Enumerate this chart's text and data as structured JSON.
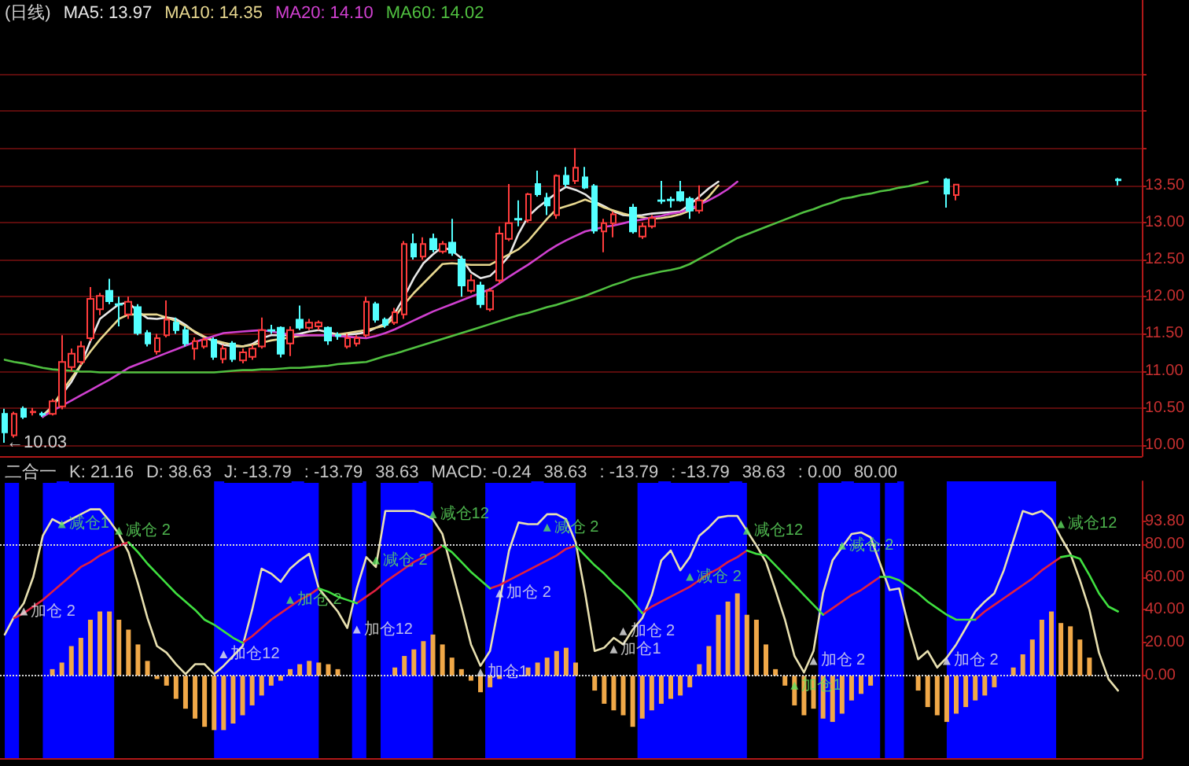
{
  "chart_data": [
    {
      "type": "candlestick",
      "title": "(日线)",
      "grid": "y",
      "tick_labels": "y",
      "ylim": [
        9.85,
        16.0
      ],
      "categories": [
        null,
        null,
        null,
        null,
        null,
        null,
        null,
        null,
        null,
        null,
        null,
        null,
        null,
        null,
        null,
        null,
        null,
        null,
        null,
        null,
        null,
        null,
        null,
        null,
        null,
        null,
        null,
        null,
        null,
        null,
        null,
        null,
        null,
        null,
        null,
        null,
        null,
        null,
        null,
        null,
        null,
        null,
        null,
        null,
        null,
        null,
        null,
        null,
        null,
        null,
        null,
        null,
        null,
        null,
        null,
        null,
        null,
        null,
        null,
        null,
        null,
        null,
        null,
        null,
        null,
        null,
        null,
        null,
        null,
        null,
        null,
        null,
        null,
        null,
        null,
        null,
        null,
        null,
        null,
        null,
        null,
        null,
        null,
        null,
        null,
        null,
        null,
        null,
        null,
        null,
        null,
        null,
        null,
        null,
        null,
        null,
        null,
        null,
        null,
        null,
        null,
        null,
        null,
        null,
        null,
        null,
        null,
        null,
        null,
        null,
        null,
        null,
        null,
        null,
        null,
        null,
        null,
        null,
        null,
        null
      ],
      "yticks": [
        {
          "value": 10,
          "label": "10.00"
        },
        {
          "value": 10.5,
          "label": "10.50"
        },
        {
          "value": 11,
          "label": "11.00"
        },
        {
          "value": 11.5,
          "label": "11.50"
        },
        {
          "value": 12,
          "label": "12.00"
        },
        {
          "value": 12.5,
          "label": "12.50"
        },
        {
          "value": 13,
          "label": "13.00"
        },
        {
          "value": 13.5,
          "label": "13.50"
        },
        {
          "value": 14,
          "label": null
        },
        {
          "value": 14.5,
          "label": null
        },
        {
          "value": 15,
          "label": null
        }
      ],
      "annotations": [
        "←10.03"
      ],
      "series": [
        {
          "ohlc": [
            [
              10.42,
              10.49,
              10.03,
              10.17
            ],
            [
              10.13,
              10.45,
              10.1,
              10.42
            ],
            [
              10.49,
              10.52,
              10.35,
              10.38
            ],
            [
              10.44,
              10.5,
              10.4,
              10.45
            ],
            [
              10.42,
              10.45,
              10.38,
              10.41
            ],
            [
              10.42,
              10.62,
              10.4,
              10.59
            ],
            [
              10.52,
              11.48,
              10.48,
              11.12
            ],
            [
              11.05,
              11.3,
              11.0,
              11.23
            ],
            [
              11.12,
              11.4,
              11.08,
              11.33
            ],
            [
              11.44,
              12.13,
              11.4,
              11.97
            ],
            [
              11.83,
              12.05,
              11.75,
              12.01
            ],
            [
              12.08,
              12.24,
              11.9,
              11.94
            ],
            [
              11.9,
              12.0,
              11.6,
              11.89
            ],
            [
              11.76,
              12.0,
              11.7,
              11.93
            ],
            [
              11.86,
              11.9,
              11.48,
              11.51
            ],
            [
              11.51,
              11.55,
              11.33,
              11.37
            ],
            [
              11.26,
              11.5,
              11.22,
              11.44
            ],
            [
              11.48,
              11.95,
              11.45,
              11.69
            ],
            [
              11.65,
              11.72,
              11.5,
              11.55
            ],
            [
              11.55,
              11.6,
              11.33,
              11.37
            ],
            [
              11.3,
              11.45,
              11.15,
              11.4
            ],
            [
              11.33,
              11.45,
              11.3,
              11.42
            ],
            [
              11.42,
              11.45,
              11.15,
              11.19
            ],
            [
              11.16,
              11.35,
              11.1,
              11.3
            ],
            [
              11.37,
              11.4,
              11.12,
              11.16
            ],
            [
              11.14,
              11.3,
              11.1,
              11.25
            ],
            [
              11.19,
              11.35,
              11.15,
              11.3
            ],
            [
              11.33,
              11.72,
              11.3,
              11.55
            ],
            [
              11.55,
              11.62,
              11.5,
              11.54
            ],
            [
              11.58,
              11.6,
              11.18,
              11.23
            ],
            [
              11.37,
              11.6,
              11.2,
              11.55
            ],
            [
              11.69,
              11.88,
              11.55,
              11.58
            ],
            [
              11.58,
              11.7,
              11.55,
              11.65
            ],
            [
              11.6,
              11.68,
              11.55,
              11.65
            ],
            [
              11.58,
              11.6,
              11.35,
              11.41
            ],
            [
              11.48,
              11.52,
              11.42,
              11.47
            ],
            [
              11.33,
              11.5,
              11.3,
              11.44
            ],
            [
              11.37,
              11.48,
              11.33,
              11.44
            ],
            [
              11.48,
              12.0,
              11.45,
              11.93
            ],
            [
              11.9,
              11.93,
              11.65,
              11.69
            ],
            [
              11.69,
              11.72,
              11.58,
              11.62
            ],
            [
              11.65,
              11.85,
              11.62,
              11.79
            ],
            [
              11.76,
              12.75,
              11.7,
              12.71
            ],
            [
              12.71,
              12.85,
              12.5,
              12.54
            ],
            [
              12.54,
              12.8,
              12.5,
              12.71
            ],
            [
              12.78,
              12.85,
              12.6,
              12.64
            ],
            [
              12.61,
              12.75,
              12.58,
              12.71
            ],
            [
              12.73,
              13.05,
              12.55,
              12.59
            ],
            [
              12.5,
              12.55,
              12.0,
              12.15
            ],
            [
              12.08,
              12.3,
              12.05,
              12.22
            ],
            [
              12.15,
              12.2,
              11.85,
              11.9
            ],
            [
              11.83,
              12.12,
              11.8,
              12.08
            ],
            [
              12.22,
              12.95,
              12.18,
              12.85
            ],
            [
              12.78,
              13.52,
              12.75,
              12.99
            ],
            [
              13.05,
              13.3,
              12.95,
              13.04
            ],
            [
              13.03,
              13.4,
              13.0,
              13.38
            ],
            [
              13.52,
              13.7,
              13.35,
              13.38
            ],
            [
              13.33,
              13.4,
              13.1,
              13.23
            ],
            [
              13.1,
              13.65,
              13.05,
              13.63
            ],
            [
              13.63,
              13.75,
              13.48,
              13.52
            ],
            [
              13.56,
              14.0,
              13.52,
              13.74
            ],
            [
              13.61,
              13.75,
              13.45,
              13.47
            ],
            [
              13.49,
              13.52,
              12.85,
              12.89
            ],
            [
              12.88,
              13.05,
              12.6,
              12.99
            ],
            [
              12.99,
              13.15,
              12.8,
              13.11
            ],
            null,
            [
              13.2,
              13.25,
              12.85,
              12.88
            ],
            [
              12.81,
              13.0,
              12.78,
              12.95
            ],
            [
              12.95,
              13.1,
              12.92,
              13.06
            ],
            [
              13.3,
              13.56,
              13.25,
              13.29
            ],
            [
              13.31,
              13.35,
              13.2,
              13.3
            ],
            [
              13.41,
              13.56,
              13.28,
              13.3
            ],
            [
              13.32,
              13.35,
              13.05,
              13.16
            ],
            [
              13.16,
              13.5,
              13.12,
              13.3
            ],
            null,
            null,
            null,
            null,
            null,
            null,
            null,
            null,
            null,
            null,
            null,
            null,
            null,
            null,
            null,
            null,
            null,
            null,
            null,
            null,
            null,
            null,
            null,
            null,
            null,
            [
              13.58,
              13.6,
              13.2,
              13.39
            ],
            [
              13.37,
              13.52,
              13.3,
              13.51
            ],
            null,
            null,
            null,
            null,
            null,
            null,
            null,
            null,
            null,
            null,
            null,
            null,
            null,
            null,
            null,
            null,
            [
              13.58,
              13.6,
              13.5,
              13.57
            ],
            null,
            null
          ]
        },
        {
          "type": "line",
          "name": "MA5: 13.97",
          "color": "#e8e8e8",
          "values": [
            null,
            null,
            null,
            null,
            10.4,
            10.52,
            10.68,
            10.85,
            11.08,
            11.4,
            11.7,
            11.8,
            11.9,
            11.92,
            11.8,
            11.71,
            11.7,
            11.72,
            11.7,
            11.62,
            11.52,
            11.45,
            11.4,
            11.35,
            11.33,
            11.33,
            11.36,
            11.44,
            11.48,
            11.48,
            11.48,
            11.5,
            11.53,
            11.55,
            11.52,
            11.49,
            11.49,
            11.5,
            11.52,
            11.58,
            11.64,
            11.78,
            12.0,
            12.25,
            12.45,
            12.57,
            12.67,
            12.62,
            12.52,
            12.33,
            12.25,
            12.28,
            12.4,
            12.55,
            12.85,
            13.08,
            13.2,
            13.3,
            13.4,
            13.48,
            13.44,
            13.38,
            13.28,
            13.22,
            13.15,
            13.1,
            13.09,
            13.1,
            13.12,
            13.13,
            13.14,
            13.15,
            13.24,
            13.35,
            13.46,
            13.55,
            null,
            null,
            null,
            null,
            null,
            null,
            null,
            null,
            null,
            null,
            null,
            null,
            null,
            null,
            null,
            null,
            null,
            null,
            null,
            null,
            null,
            null,
            null,
            null,
            null,
            null,
            null,
            null,
            null,
            null,
            null,
            null,
            null,
            null,
            null,
            null,
            null,
            null,
            null,
            null,
            null,
            null,
            null,
            null
          ]
        },
        {
          "type": "line",
          "name": "MA10: 14.35",
          "color": "#e8d890",
          "values": [
            null,
            null,
            null,
            null,
            10.38,
            10.52,
            10.72,
            10.9,
            11.08,
            11.26,
            11.42,
            11.56,
            11.7,
            11.76,
            11.76,
            11.76,
            11.76,
            11.72,
            11.67,
            11.6,
            11.53,
            11.46,
            11.41,
            11.38,
            11.35,
            11.33,
            11.35,
            11.38,
            11.41,
            11.43,
            11.45,
            11.47,
            11.48,
            11.48,
            11.48,
            11.49,
            11.51,
            11.53,
            11.55,
            11.58,
            11.61,
            11.73,
            11.9,
            12.05,
            12.18,
            12.31,
            12.44,
            12.45,
            12.44,
            12.43,
            12.43,
            12.43,
            12.5,
            12.57,
            12.64,
            12.75,
            12.9,
            13.05,
            13.18,
            13.22,
            13.26,
            13.31,
            13.26,
            13.2,
            13.16,
            13.12,
            13.09,
            13.07,
            13.05,
            13.06,
            13.08,
            13.11,
            13.16,
            13.24,
            13.35,
            13.5,
            null,
            null,
            null,
            null,
            null,
            null,
            null,
            null,
            null,
            null,
            null,
            null,
            null,
            null,
            null,
            null,
            null,
            null,
            null,
            null,
            null,
            null,
            null,
            null,
            null,
            null,
            null,
            null,
            null,
            null,
            null,
            null,
            null,
            null,
            null,
            null,
            null,
            null,
            null,
            null,
            null,
            null,
            null,
            null
          ]
        },
        {
          "type": "line",
          "name": "MA20: 14.10",
          "color": "#d040d0",
          "values": [
            null,
            null,
            null,
            null,
            10.38,
            10.46,
            10.53,
            10.6,
            10.67,
            10.74,
            10.81,
            10.88,
            10.96,
            11.04,
            11.09,
            11.14,
            11.19,
            11.24,
            11.29,
            11.34,
            11.39,
            11.43,
            11.47,
            11.51,
            11.52,
            11.53,
            11.54,
            11.55,
            11.53,
            11.51,
            11.49,
            11.48,
            11.48,
            11.48,
            11.48,
            11.47,
            11.46,
            11.45,
            11.44,
            11.47,
            11.51,
            11.56,
            11.62,
            11.68,
            11.74,
            11.8,
            11.85,
            11.9,
            11.95,
            12.0,
            12.05,
            12.1,
            12.18,
            12.27,
            12.35,
            12.43,
            12.52,
            12.61,
            12.69,
            12.76,
            12.82,
            12.88,
            12.91,
            12.94,
            12.96,
            12.99,
            13.02,
            13.04,
            13.07,
            13.09,
            13.12,
            13.14,
            13.18,
            13.24,
            13.3,
            13.37,
            13.45,
            13.55,
            null,
            null,
            null,
            null,
            null,
            null,
            null,
            null,
            null,
            null,
            null,
            null,
            null,
            null,
            null,
            null,
            null,
            null,
            null,
            null,
            null,
            null,
            null,
            null,
            null,
            null,
            null,
            null,
            null,
            null,
            null,
            null,
            null,
            null,
            null,
            null,
            null,
            null,
            null,
            null,
            null,
            null
          ]
        },
        {
          "type": "line",
          "name": "MA60: 14.02",
          "color": "#50c040",
          "values": [
            11.15,
            11.12,
            11.1,
            11.07,
            11.04,
            11.02,
            11.01,
            11.0,
            10.99,
            10.99,
            10.98,
            10.98,
            10.98,
            10.98,
            10.98,
            10.98,
            10.98,
            10.98,
            10.98,
            10.98,
            10.98,
            10.98,
            10.98,
            10.99,
            11.0,
            11.01,
            11.01,
            11.02,
            11.02,
            11.03,
            11.04,
            11.04,
            11.05,
            11.06,
            11.07,
            11.09,
            11.1,
            11.11,
            11.12,
            11.16,
            11.2,
            11.23,
            11.27,
            11.31,
            11.35,
            11.39,
            11.43,
            11.47,
            11.51,
            11.55,
            11.59,
            11.63,
            11.67,
            11.71,
            11.75,
            11.78,
            11.82,
            11.86,
            11.89,
            11.93,
            11.97,
            12.01,
            12.06,
            12.11,
            12.16,
            12.2,
            12.25,
            12.28,
            12.31,
            12.34,
            12.36,
            12.39,
            12.44,
            12.51,
            12.58,
            12.65,
            12.72,
            12.79,
            12.84,
            12.89,
            12.94,
            12.99,
            13.04,
            13.09,
            13.14,
            13.18,
            13.23,
            13.27,
            13.32,
            13.34,
            13.37,
            13.39,
            13.42,
            13.44,
            13.47,
            13.49,
            13.52,
            13.55,
            null,
            null,
            null,
            null,
            null,
            null,
            null,
            null,
            null,
            null,
            null,
            null,
            null,
            null,
            null,
            null,
            null,
            null,
            null,
            null,
            null,
            null
          ]
        }
      ]
    },
    {
      "type": "line",
      "title": "二合一",
      "grid": false,
      "tick_labels": "y",
      "ylim": [
        -50,
        118
      ],
      "categories": [
        null,
        null,
        null,
        null,
        null,
        null,
        null,
        null,
        null,
        null,
        null,
        null,
        null,
        null,
        null,
        null,
        null,
        null,
        null,
        null,
        null,
        null,
        null,
        null,
        null,
        null,
        null,
        null,
        null,
        null,
        null,
        null,
        null,
        null,
        null,
        null,
        null,
        null,
        null,
        null,
        null,
        null,
        null,
        null,
        null,
        null,
        null,
        null,
        null,
        null,
        null,
        null,
        null,
        null,
        null,
        null,
        null,
        null,
        null,
        null,
        null,
        null,
        null,
        null,
        null,
        null,
        null,
        null,
        null,
        null,
        null,
        null,
        null,
        null,
        null,
        null,
        null,
        null,
        null,
        null,
        null,
        null,
        null,
        null,
        null,
        null,
        null,
        null,
        null,
        null,
        null,
        null,
        null,
        null,
        null,
        null,
        null,
        null,
        null,
        null,
        null,
        null,
        null,
        null,
        null,
        null,
        null,
        null,
        null,
        null,
        null,
        null,
        null,
        null,
        null,
        null,
        null,
        null,
        null,
        null
      ],
      "yticks": [
        {
          "value": 0,
          "label": "0.00"
        },
        {
          "value": 20,
          "label": "20.00"
        },
        {
          "value": 40,
          "label": "40.00"
        },
        {
          "value": 60,
          "label": "60.00"
        },
        {
          "value": 80,
          "label": "80.00"
        },
        {
          "value": 93.8,
          "label": "93.80"
        }
      ],
      "annotations": [
        "K: 21.16",
        "D: 38.63",
        "J: -13.79",
        ": -13.79",
        "38.63",
        "MACD: -0.24",
        "38.63",
        ": -13.79",
        ": -13.79",
        "38.63",
        ": 0.00",
        "80.00"
      ],
      "ref_lines": [
        {
          "axis": "y",
          "value": 80,
          "color": "#d8d8d8",
          "line_style": "dotted"
        },
        {
          "axis": "y",
          "value": 0,
          "color": "#d8d8d8",
          "line_style": "dotted"
        }
      ],
      "series": [
        {
          "type": "bar",
          "color": "#f0a848",
          "values": [
            null,
            null,
            null,
            null,
            null,
            4,
            8,
            18,
            23,
            34,
            39,
            39,
            34,
            28,
            19,
            9,
            -2,
            -6,
            -14,
            -20,
            -26,
            -31,
            -33,
            -33,
            -29,
            -24,
            -18,
            -12,
            -6,
            -3,
            4,
            7,
            9,
            8,
            7,
            4,
            null,
            null,
            null,
            null,
            null,
            5,
            12,
            16,
            21,
            25,
            19,
            11,
            4,
            -3,
            -10,
            -7,
            -2,
            null,
            null,
            5,
            8,
            11,
            15,
            17,
            8,
            null,
            -9,
            -17,
            -21,
            -24,
            -31,
            -26,
            -21,
            -17,
            -14,
            -12,
            -7,
            7,
            18,
            37,
            45,
            50,
            37,
            34,
            19,
            4,
            -6,
            -18,
            -24,
            -20,
            -26,
            -28,
            -23,
            -15,
            -11,
            -6,
            null,
            null,
            null,
            null,
            -9,
            -19,
            -24,
            -28,
            -23,
            -19,
            -15,
            -12,
            -7,
            null,
            5,
            13,
            22,
            34,
            39,
            32,
            30,
            22,
            11,
            null,
            null,
            null,
            null,
            null
          ]
        },
        {
          "color": "#e8e0b0",
          "values": [
            25,
            36,
            44,
            60,
            85,
            95,
            92,
            95,
            98,
            101,
            101,
            94,
            86,
            75,
            56,
            35,
            18,
            14,
            7,
            1,
            7,
            7,
            1,
            6,
            12,
            18,
            40,
            65,
            62,
            57,
            65,
            70,
            74,
            53,
            46,
            39,
            29,
            53,
            72,
            66,
            100,
            100,
            100,
            100,
            98,
            95,
            86,
            64,
            42,
            19,
            6,
            15,
            45,
            76,
            93,
            92,
            92,
            98,
            98,
            95,
            81,
            50,
            15,
            17,
            23,
            19,
            28,
            35,
            49,
            70,
            76,
            64,
            72,
            85,
            90,
            96,
            97,
            97,
            88,
            79,
            69,
            52,
            34,
            12,
            2,
            15,
            50,
            70,
            78,
            86,
            87,
            84,
            68,
            52,
            53,
            30,
            10,
            15,
            5,
            11,
            19,
            29,
            39,
            45,
            50,
            64,
            82,
            100,
            98,
            100,
            95,
            84,
            74,
            58,
            40,
            14,
            -2,
            -9,
            null,
            null
          ]
        },
        {
          "color": "#e02040",
          "values": [
            null,
            35,
            38,
            42,
            46,
            51,
            56,
            61,
            66,
            69,
            73,
            76,
            79,
            81,
            null,
            null,
            null,
            null,
            null,
            null,
            null,
            null,
            null,
            null,
            null,
            20,
            24,
            29,
            34,
            38,
            42,
            46,
            49,
            53,
            null,
            null,
            null,
            44,
            48,
            52,
            57,
            61,
            65,
            69,
            72,
            75,
            79,
            null,
            null,
            null,
            null,
            53,
            55,
            58,
            61,
            64,
            67,
            70,
            73,
            77,
            79,
            null,
            null,
            null,
            null,
            null,
            null,
            38,
            42,
            45,
            48,
            51,
            54,
            58,
            62,
            65,
            69,
            72,
            76,
            null,
            null,
            null,
            null,
            null,
            null,
            null,
            37,
            41,
            45,
            49,
            52,
            56,
            60,
            null,
            null,
            null,
            null,
            null,
            null,
            null,
            null,
            null,
            34,
            39,
            43,
            47,
            51,
            55,
            59,
            64,
            68,
            72,
            null,
            null,
            null,
            null,
            null,
            null,
            null,
            null
          ]
        },
        {
          "color": "#40e040",
          "values": [
            null,
            null,
            null,
            null,
            null,
            null,
            null,
            null,
            null,
            null,
            null,
            null,
            null,
            81,
            75,
            68,
            62,
            56,
            50,
            45,
            40,
            34,
            31,
            27,
            23,
            20,
            null,
            null,
            null,
            null,
            null,
            null,
            null,
            53,
            51,
            48,
            46,
            44,
            null,
            null,
            null,
            null,
            null,
            null,
            null,
            null,
            79,
            75,
            69,
            63,
            58,
            53,
            null,
            null,
            null,
            null,
            null,
            null,
            null,
            null,
            79,
            73,
            67,
            62,
            56,
            51,
            45,
            38,
            null,
            null,
            null,
            null,
            null,
            null,
            null,
            null,
            null,
            null,
            76,
            74,
            73,
            67,
            61,
            55,
            49,
            43,
            37,
            null,
            null,
            null,
            null,
            null,
            60,
            60,
            58,
            54,
            50,
            45,
            41,
            37,
            34,
            34,
            34,
            null,
            null,
            null,
            null,
            null,
            null,
            null,
            null,
            72,
            73,
            71,
            61,
            50,
            42,
            39,
            null,
            null
          ]
        },
        {
          "type": "scatter",
          "marker": "triangle",
          "values": [
            null,
            null,
            39,
            null,
            null,
            null,
            92,
            null,
            null,
            null,
            null,
            null,
            88,
            null,
            null,
            null,
            null,
            null,
            null,
            null,
            null,
            null,
            null,
            13,
            null,
            null,
            null,
            null,
            null,
            null,
            46,
            null,
            null,
            null,
            null,
            null,
            null,
            28,
            null,
            70,
            null,
            null,
            null,
            null,
            null,
            98,
            null,
            null,
            null,
            null,
            2,
            null,
            50,
            null,
            null,
            null,
            null,
            90,
            null,
            null,
            null,
            null,
            null,
            null,
            16,
            27,
            null,
            null,
            null,
            null,
            null,
            null,
            60,
            null,
            null,
            null,
            null,
            null,
            88,
            null,
            null,
            null,
            null,
            -6,
            null,
            9,
            null,
            null,
            79,
            null,
            null,
            null,
            null,
            null,
            null,
            null,
            null,
            null,
            null,
            9,
            null,
            null,
            null,
            null,
            null,
            null,
            null,
            null,
            null,
            null,
            null,
            92,
            null,
            null,
            null,
            null,
            null,
            null,
            null,
            null
          ],
          "value_labels": [
            null,
            null,
            "加仓 2",
            null,
            null,
            null,
            "减仓1",
            null,
            null,
            null,
            null,
            null,
            "减仓 2",
            null,
            null,
            null,
            null,
            null,
            null,
            null,
            null,
            null,
            null,
            "加仓12",
            null,
            null,
            null,
            null,
            null,
            null,
            "加仓 2",
            null,
            null,
            null,
            null,
            null,
            null,
            "加仓12",
            null,
            "减仓 2",
            null,
            null,
            null,
            null,
            null,
            "减仓12",
            null,
            null,
            null,
            null,
            "加仓1",
            null,
            "加仓 2",
            null,
            null,
            null,
            null,
            "减仓 2",
            null,
            null,
            null,
            null,
            null,
            null,
            "加仓1",
            "加仓 2",
            null,
            null,
            null,
            null,
            null,
            null,
            "减仓 2",
            null,
            null,
            null,
            null,
            null,
            "减仓12",
            null,
            null,
            null,
            null,
            "加仓1",
            null,
            "加仓 2",
            null,
            null,
            "减仓 2",
            null,
            null,
            null,
            null,
            null,
            null,
            null,
            null,
            null,
            null,
            "加仓 2",
            null,
            null,
            null,
            null,
            null,
            null,
            null,
            null,
            null,
            null,
            null,
            "减仓12",
            null,
            null,
            null,
            null,
            null,
            null,
            null,
            null
          ],
          "colors": [
            null,
            null,
            "#e8e8e8",
            null,
            null,
            null,
            "#60e060",
            null,
            null,
            null,
            null,
            null,
            "#60e060",
            null,
            null,
            null,
            null,
            null,
            null,
            null,
            null,
            null,
            null,
            "#e8e8e8",
            null,
            null,
            null,
            null,
            null,
            null,
            "#60e060",
            null,
            null,
            null,
            null,
            null,
            null,
            "#e8e8e8",
            null,
            "#60e060",
            null,
            null,
            null,
            null,
            null,
            "#60e060",
            null,
            null,
            null,
            null,
            "#e8e8e8",
            null,
            "#e8e8e8",
            null,
            null,
            null,
            null,
            "#60e060",
            null,
            null,
            null,
            null,
            null,
            null,
            "#e8e8e8",
            "#e8e8e8",
            null,
            null,
            null,
            null,
            null,
            null,
            "#60e060",
            null,
            null,
            null,
            null,
            null,
            "#60e060",
            null,
            null,
            null,
            null,
            "#60e060",
            null,
            "#e8e8e8",
            null,
            null,
            "#60e060",
            null,
            null,
            null,
            null,
            null,
            null,
            null,
            null,
            null,
            null,
            "#e8e8e8",
            null,
            null,
            null,
            null,
            null,
            null,
            null,
            null,
            null,
            null,
            null,
            "#60e060",
            null,
            null,
            null,
            null,
            null,
            null,
            null,
            null
          ]
        }
      ]
    }
  ]
}
